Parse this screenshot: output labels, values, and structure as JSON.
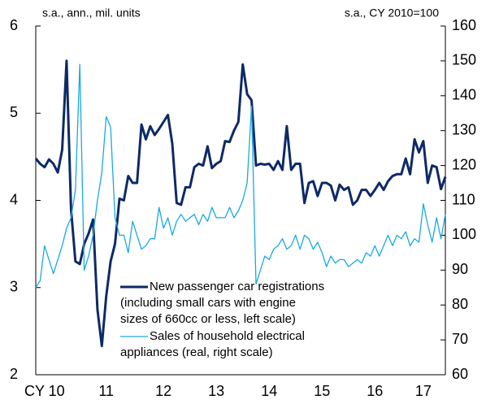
{
  "chart_data": {
    "type": "line",
    "left_axis_label": "s.a., ann., mil. units",
    "right_axis_label": "s.a., CY 2010=100",
    "categories": [
      null,
      null,
      "CY 10",
      null,
      null,
      null,
      null,
      null,
      null,
      null,
      null,
      null,
      null,
      null,
      null,
      null,
      "11",
      null,
      null,
      null,
      null,
      null,
      null,
      null,
      null,
      null,
      null,
      null,
      null,
      "12",
      null,
      null,
      null,
      null,
      null,
      null,
      null,
      null,
      null,
      null,
      null,
      "13",
      null,
      null,
      null,
      null,
      null,
      null,
      null,
      null,
      null,
      null,
      null,
      "14",
      null,
      null,
      null,
      null,
      null,
      null,
      null,
      null,
      null,
      null,
      null,
      "15",
      null,
      null,
      null,
      null,
      null,
      null,
      null,
      null,
      null,
      null,
      null,
      "16",
      null,
      null,
      null,
      null,
      null,
      null,
      null,
      null,
      null,
      null,
      "17",
      null,
      null,
      null,
      null,
      null
    ],
    "ylim": [
      2,
      6
    ],
    "yticks": [
      2,
      3,
      4,
      5,
      6
    ],
    "y2lim": [
      60,
      160
    ],
    "y2ticks": [
      60,
      70,
      80,
      90,
      100,
      110,
      120,
      130,
      140,
      150,
      160
    ],
    "series": [
      {
        "name": [
          "New passenger car registrations",
          "(including small cars with engine",
          "sizes of 660cc or less, left scale)"
        ],
        "color": "#0d2a66",
        "axis": "y",
        "values": [
          4.48,
          4.42,
          4.38,
          4.47,
          4.42,
          4.32,
          4.58,
          5.6,
          3.9,
          3.3,
          3.27,
          3.5,
          3.62,
          3.78,
          2.75,
          2.33,
          2.9,
          3.3,
          3.5,
          4.02,
          4.0,
          4.28,
          4.2,
          4.2,
          4.87,
          4.7,
          4.85,
          4.75,
          4.82,
          4.9,
          4.98,
          4.65,
          3.97,
          3.95,
          4.15,
          4.15,
          4.38,
          4.42,
          4.4,
          4.62,
          4.37,
          4.42,
          4.45,
          4.68,
          4.67,
          4.8,
          4.9,
          5.56,
          5.22,
          5.15,
          4.4,
          4.42,
          4.41,
          4.42,
          4.35,
          4.45,
          4.35,
          4.85,
          4.35,
          4.42,
          4.42,
          3.97,
          4.2,
          4.22,
          4.05,
          4.2,
          4.2,
          4.17,
          4.0,
          4.18,
          4.12,
          4.15,
          3.95,
          4.0,
          4.12,
          4.12,
          4.05,
          4.12,
          4.2,
          4.12,
          4.22,
          4.28,
          4.3,
          4.3,
          4.48,
          4.3,
          4.7,
          4.55,
          4.68,
          4.2,
          4.4,
          4.38,
          4.13,
          4.27
        ]
      },
      {
        "name": [
          "Sales of household electrical",
          "appliances (real, right scale)"
        ],
        "color": "#1aa9e0",
        "axis": "y2",
        "values": [
          85,
          87,
          97,
          93,
          89,
          93,
          97,
          102,
          105,
          113,
          149,
          90,
          94,
          100,
          110,
          118,
          134,
          131,
          105,
          100,
          100,
          95,
          104,
          100,
          96,
          97,
          99,
          99,
          108,
          102,
          105,
          100,
          104,
          106,
          104,
          105,
          106,
          103,
          106,
          104,
          108,
          105,
          105,
          105,
          108,
          105,
          107,
          110,
          115,
          137,
          86,
          90,
          94,
          93,
          96,
          97,
          99,
          96,
          97,
          100,
          96,
          100,
          99,
          96,
          98,
          95,
          91,
          94,
          92,
          93,
          93,
          91,
          92,
          93,
          92,
          95,
          94,
          97,
          94,
          97,
          100,
          97,
          100,
          99,
          101,
          97,
          99,
          98,
          109,
          103,
          98,
          105,
          99,
          106
        ]
      }
    ]
  }
}
